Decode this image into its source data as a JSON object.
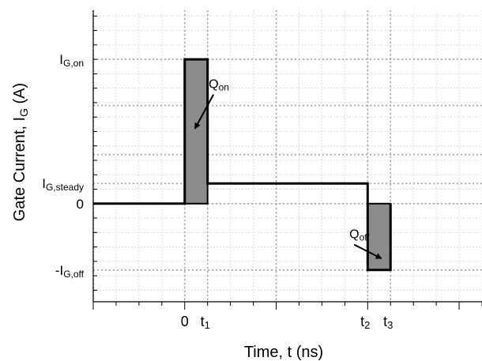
{
  "chart_data": {
    "type": "line",
    "title": "",
    "xlabel": "Time, t (ns)",
    "ylabel": "Gate Current, I_G (A)",
    "ylabel_parts": {
      "main": "Gate Current, I",
      "sub": "G",
      "tail": " (A)"
    },
    "x_ticks": [
      {
        "x": 0,
        "main": "0",
        "sub": ""
      },
      {
        "x": 1,
        "main": "t",
        "sub": "1"
      },
      {
        "x": 8,
        "main": "t",
        "sub": "2"
      },
      {
        "x": 9,
        "main": "t",
        "sub": "3"
      }
    ],
    "y_ticks": [
      {
        "y": 5,
        "main": "I",
        "sub": "G,on"
      },
      {
        "y": 0.7,
        "main": "I",
        "sub": "G,steady"
      },
      {
        "y": 0,
        "main": "0",
        "sub": ""
      },
      {
        "y": -2.3,
        "main": "-I",
        "sub": "G,off"
      }
    ],
    "xlim": [
      -4,
      13
    ],
    "ylim": [
      -3.4,
      6.7
    ],
    "grid": true,
    "series": [
      {
        "values": [
          [
            -4,
            0
          ],
          [
            0,
            0
          ],
          [
            0,
            5
          ],
          [
            1,
            5
          ],
          [
            1,
            0.7
          ],
          [
            8,
            0.7
          ],
          [
            8,
            0
          ],
          [
            8,
            -2.3
          ],
          [
            9,
            -2.3
          ],
          [
            9,
            0
          ]
        ]
      }
    ],
    "shaded_regions": [
      {
        "x": [
          0,
          1
        ],
        "y": [
          0,
          5
        ],
        "color": "#8c8c8c"
      },
      {
        "x": [
          8,
          9
        ],
        "y": [
          -2.3,
          0
        ],
        "color": "#8c8c8c"
      }
    ],
    "annotations": [
      {
        "main": "Q",
        "sub": "on",
        "text_at": [
          1.05,
          4.0
        ],
        "arrow_to": [
          0.45,
          2.6
        ]
      },
      {
        "main": "Q",
        "sub": "off",
        "text_at": [
          7.2,
          -1.2
        ],
        "arrow_to": [
          8.6,
          -1.9
        ]
      }
    ],
    "colors": {
      "line": "#000000",
      "fill": "#8c8c8c",
      "major_grid": "#a6a6a6",
      "minor_grid": "#dcdcdc"
    }
  }
}
